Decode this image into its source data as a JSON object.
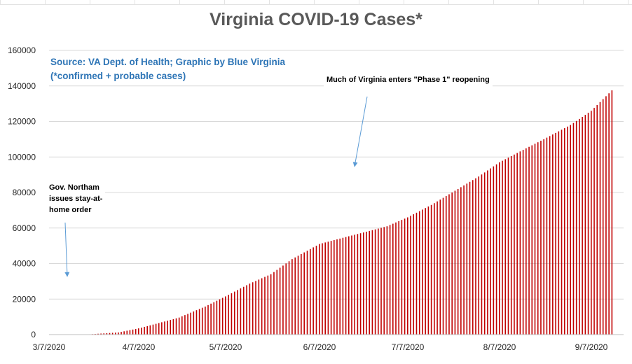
{
  "chart_data": {
    "type": "bar",
    "title": "Virginia COVID-19 Cases*",
    "source_line1": "Source: VA Dept. of Health; Graphic by Blue Virginia",
    "source_line2": "(*confirmed + probable cases)",
    "annotations": [
      {
        "lines": [
          "Much of Virginia enters \"Phase 1\" reopening"
        ],
        "date": "2020-05-15"
      },
      {
        "lines": [
          "Gov. Northam",
          "issues stay-at-",
          "home order"
        ],
        "date": "2020-03-30"
      }
    ],
    "x_start": "2020-03-07",
    "x_end": "2020-09-14",
    "x_ticks": [
      "3/7/2020",
      "4/7/2020",
      "5/7/2020",
      "6/7/2020",
      "7/7/2020",
      "8/7/2020",
      "9/7/2020"
    ],
    "ylim": [
      0,
      160000
    ],
    "y_ticks": [
      "0",
      "20000",
      "40000",
      "60000",
      "80000",
      "100000",
      "120000",
      "140000",
      "160000"
    ],
    "grid": true,
    "bar_color": "#c00000",
    "approx_cumulative_values": [
      {
        "date": "2020-03-07",
        "value": 0
      },
      {
        "date": "2020-03-20",
        "value": 100
      },
      {
        "date": "2020-03-31",
        "value": 1200
      },
      {
        "date": "2020-04-07",
        "value": 3500
      },
      {
        "date": "2020-04-14",
        "value": 6500
      },
      {
        "date": "2020-04-21",
        "value": 9600
      },
      {
        "date": "2020-04-30",
        "value": 15800
      },
      {
        "date": "2020-05-07",
        "value": 21500
      },
      {
        "date": "2020-05-15",
        "value": 28700
      },
      {
        "date": "2020-05-22",
        "value": 34000
      },
      {
        "date": "2020-05-29",
        "value": 42500
      },
      {
        "date": "2020-06-07",
        "value": 51000
      },
      {
        "date": "2020-06-15",
        "value": 54500
      },
      {
        "date": "2020-06-22",
        "value": 57500
      },
      {
        "date": "2020-06-30",
        "value": 61000
      },
      {
        "date": "2020-07-07",
        "value": 66000
      },
      {
        "date": "2020-07-15",
        "value": 73000
      },
      {
        "date": "2020-07-22",
        "value": 80000
      },
      {
        "date": "2020-07-31",
        "value": 89000
      },
      {
        "date": "2020-08-07",
        "value": 97000
      },
      {
        "date": "2020-08-15",
        "value": 104000
      },
      {
        "date": "2020-08-22",
        "value": 110000
      },
      {
        "date": "2020-08-31",
        "value": 118000
      },
      {
        "date": "2020-09-07",
        "value": 126000
      },
      {
        "date": "2020-09-14",
        "value": 137500
      }
    ]
  }
}
